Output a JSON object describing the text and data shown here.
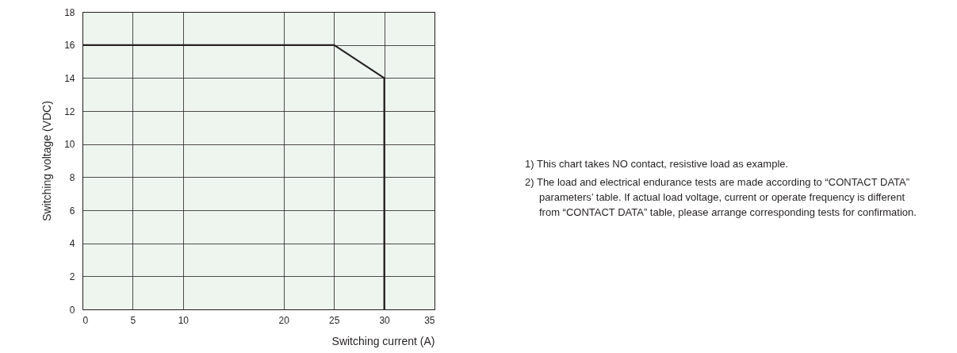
{
  "chart_data": {
    "type": "line",
    "xlabel": "Switching current (A)",
    "ylabel": "Switching voltage (VDC)",
    "x": [
      0,
      25,
      30,
      30
    ],
    "values": [
      16,
      16,
      14,
      0
    ],
    "color": "#231f20",
    "xlim": [
      0,
      35
    ],
    "xticks": [
      0,
      5,
      10,
      20,
      25,
      30,
      35
    ],
    "ylim": [
      0,
      18
    ],
    "yticks": [
      0,
      2,
      4,
      6,
      8,
      10,
      12,
      14,
      16,
      18
    ],
    "grid": true,
    "annotations": [
      "1) This chart takes NO contact, resistive load as example.",
      "2) The load and electrical endurance tests are made according to “CONTACT DATA” parameters’ table. If actual load voltage, current or operate frequency is different from “CONTACT DATA” table, please arrange corresponding tests for confirmation."
    ]
  }
}
